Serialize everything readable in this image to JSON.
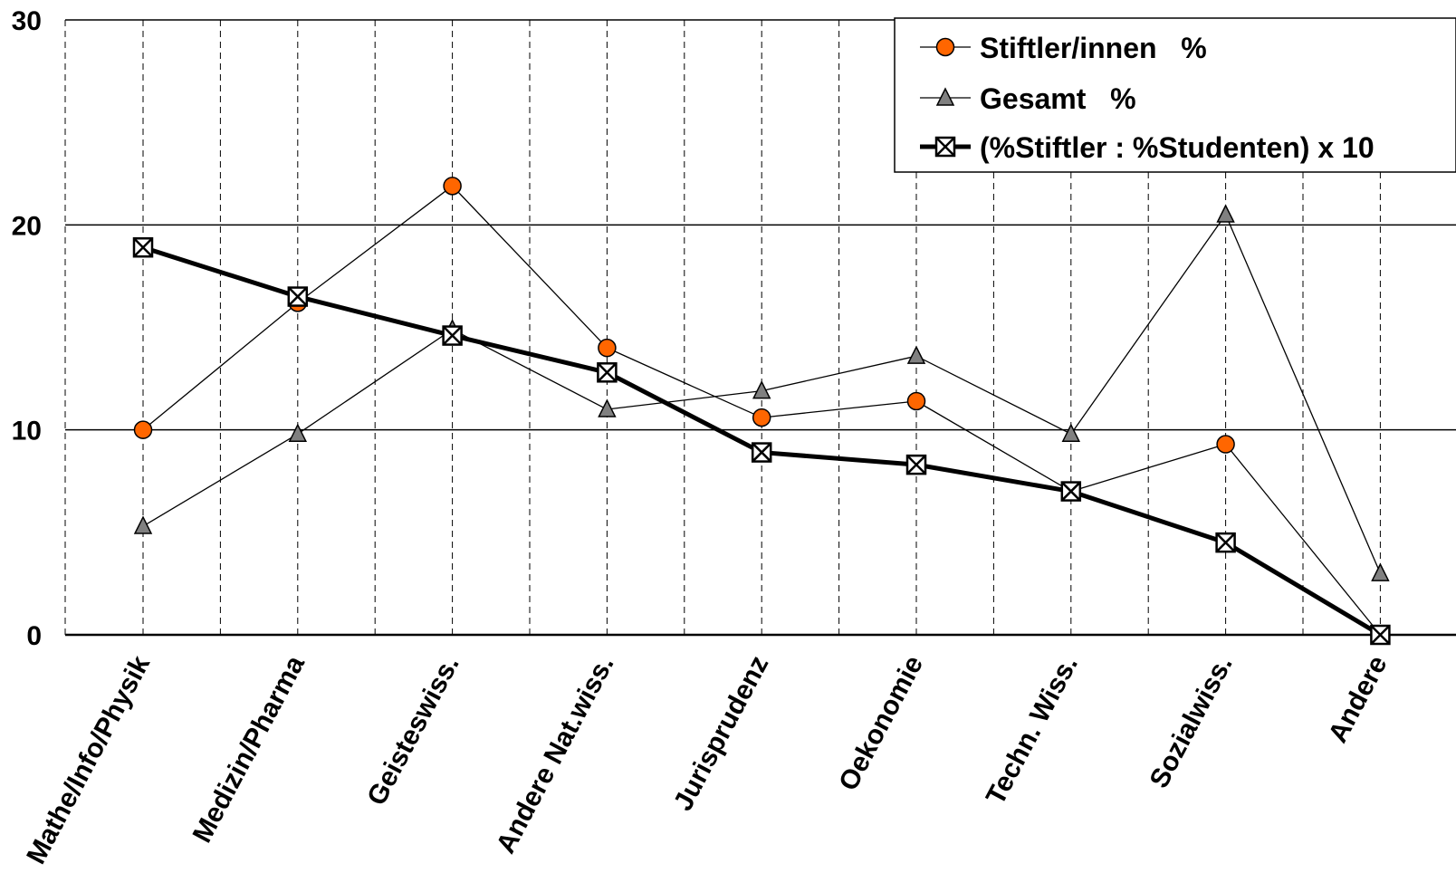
{
  "chart_data": {
    "type": "line",
    "title": "",
    "xlabel": "",
    "ylabel": "",
    "ylim": [
      0,
      30
    ],
    "yticks": [
      0,
      10,
      20,
      30
    ],
    "grid": {
      "horizontal": true,
      "vertical_dashed": true
    },
    "legend_position": "top-right",
    "categories": [
      "Mathe/Info/Physik",
      "Medizin/Pharma",
      "Geisteswiss.",
      "Andere Nat.wiss.",
      "Jurisprudenz",
      "Oekonomie",
      "Techn. Wiss.",
      "Sozialwiss.",
      "Andere"
    ],
    "series": [
      {
        "name": "Stiftler/innen   %",
        "marker": "circle",
        "color": "#ff6600",
        "line_color": "#000000",
        "values": [
          10.0,
          16.2,
          21.9,
          14.0,
          10.6,
          11.4,
          7.0,
          9.3,
          0.0
        ]
      },
      {
        "name": "Gesamt   %",
        "marker": "triangle",
        "color": "#808080",
        "line_color": "#000000",
        "values": [
          5.3,
          9.8,
          14.9,
          11.0,
          11.9,
          13.6,
          9.8,
          20.5,
          3.0
        ]
      },
      {
        "name": "(%Stiftler : %Studenten) x 10",
        "marker": "boxed-x",
        "color": "#000000",
        "line_color": "#000000",
        "values": [
          18.9,
          16.5,
          14.6,
          12.8,
          8.9,
          8.3,
          7.0,
          4.5,
          0.0
        ]
      }
    ]
  }
}
